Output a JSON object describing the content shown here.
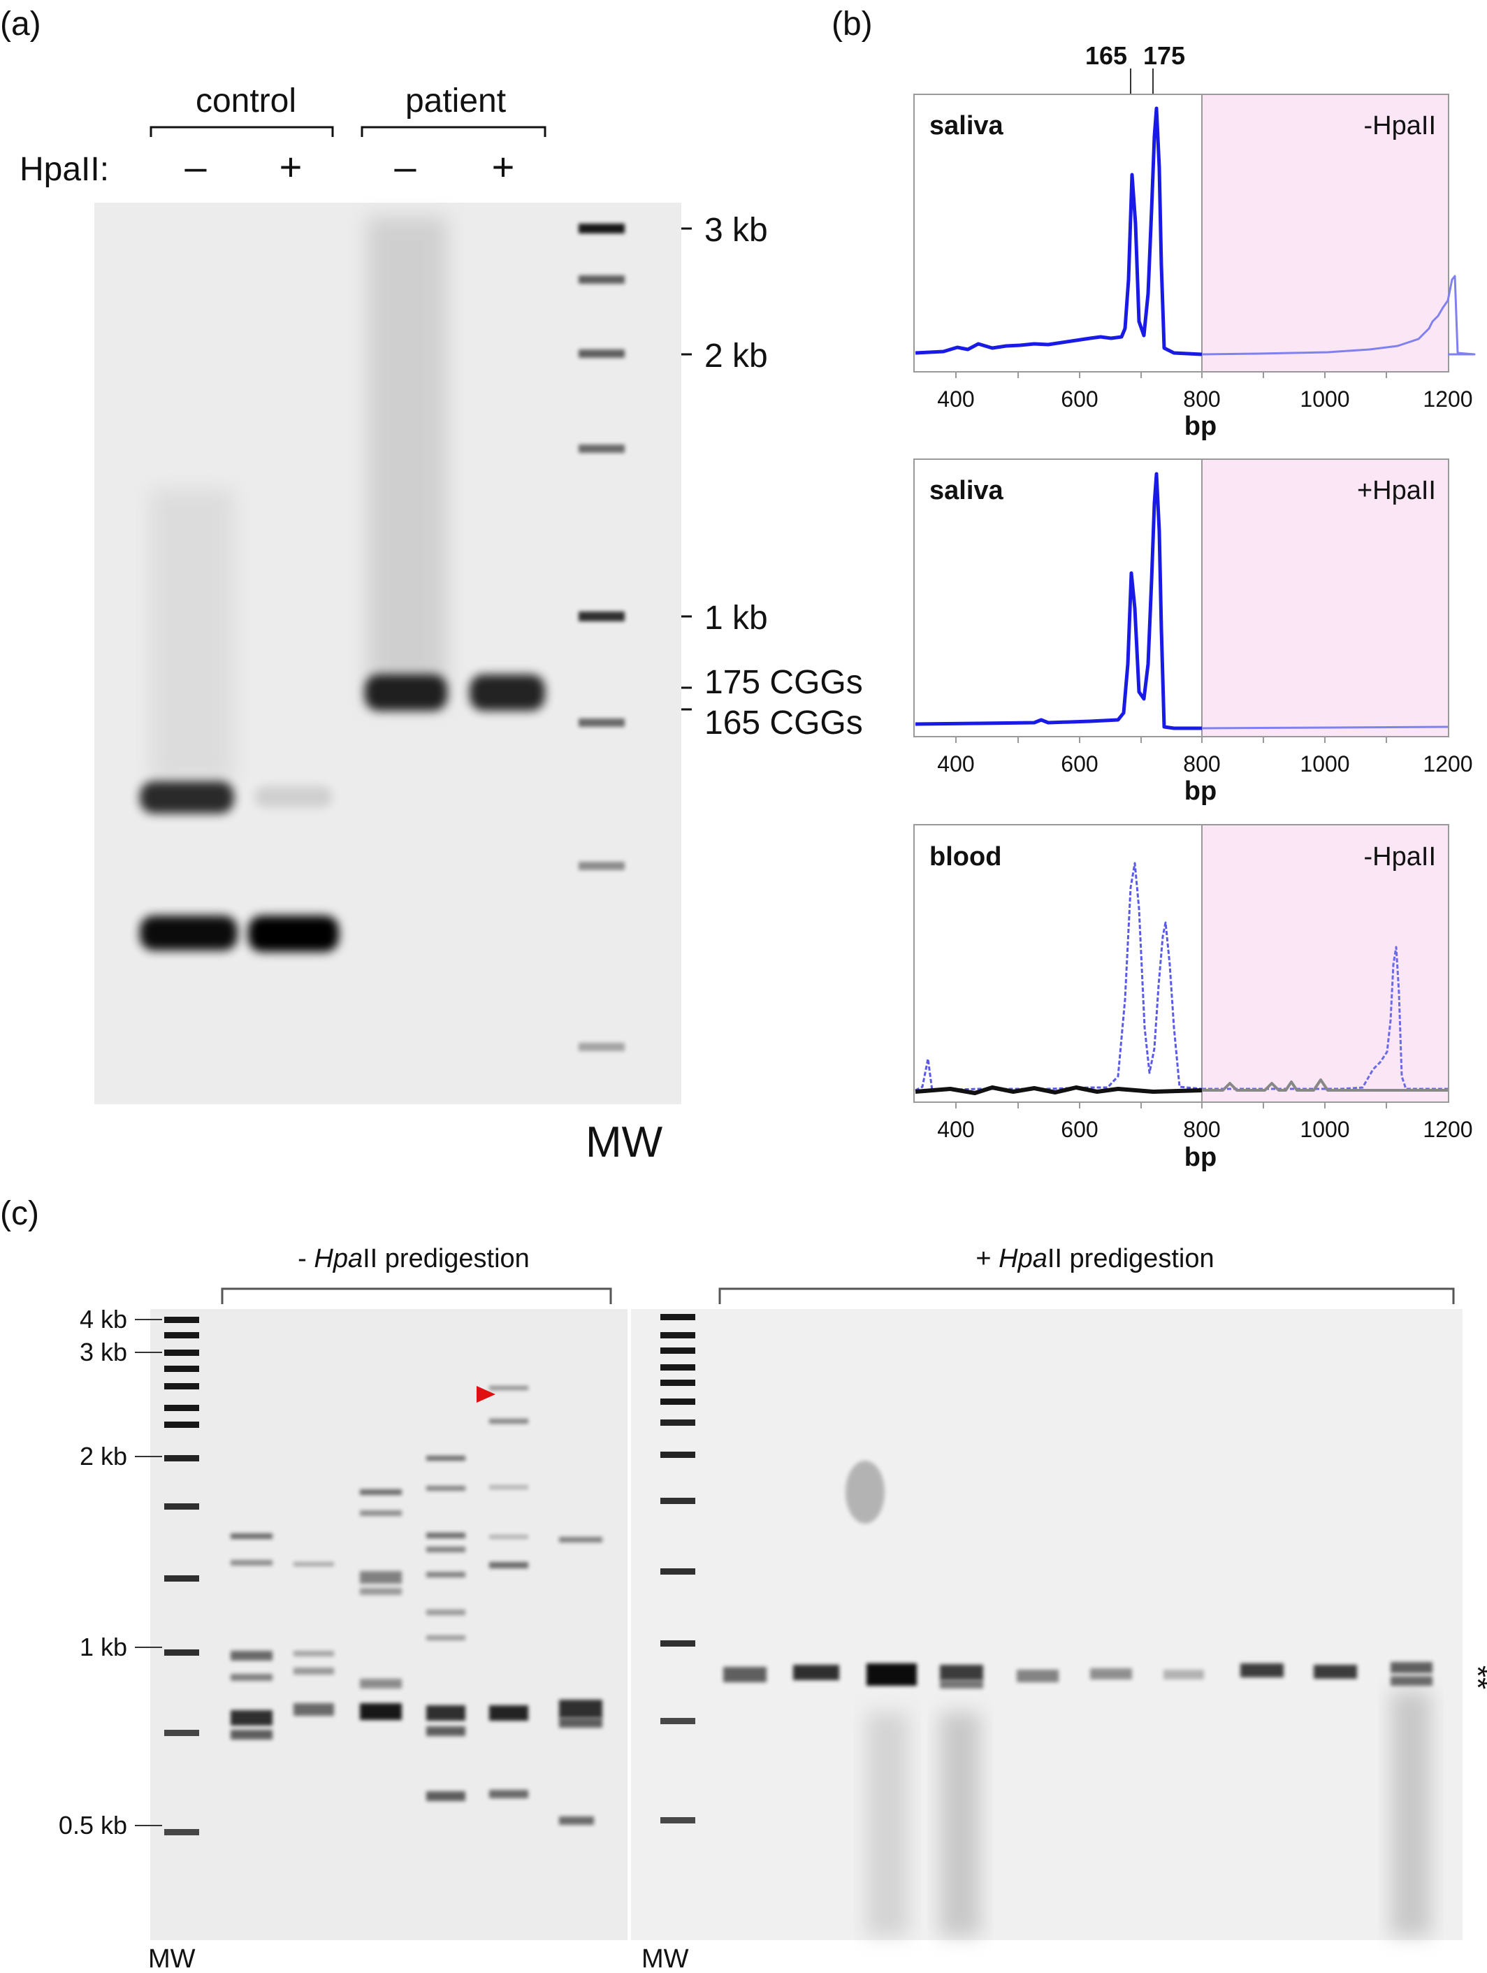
{
  "panel_a": {
    "panel_label": "(a)",
    "group_control": "control",
    "group_patient": "patient",
    "enzyme_label": "HpaII:",
    "lane_signs": [
      "–",
      "+",
      "–",
      "+"
    ],
    "size_markers": [
      "3 kb",
      "2 kb",
      "1 kb",
      "175 CGGs",
      "165 CGGs"
    ],
    "mw_label": "MW"
  },
  "panel_b": {
    "panel_label": "(b)",
    "peak_labels": [
      "165",
      "175"
    ],
    "x_axis_label": "bp",
    "x_ticks": [
      "400",
      "600",
      "800",
      "1000",
      "1200"
    ],
    "traces": [
      {
        "sample": "saliva",
        "condition": "-HpaII",
        "color": "#1a1ae6"
      },
      {
        "sample": "saliva",
        "condition": "+HpaII",
        "color": "#1a1ae6"
      },
      {
        "sample": "blood",
        "condition": "-HpaII",
        "color": "#5a5ae6"
      }
    ],
    "shade_color": "#fbe6f6"
  },
  "panel_c": {
    "panel_label": "(c)",
    "left_title_prefix": "- ",
    "left_title_italic": "Hpa",
    "left_title_suffix": "II predigestion",
    "right_title_prefix": "+ ",
    "right_title_italic": "Hpa",
    "right_title_suffix": "II predigestion",
    "size_markers": [
      "4 kb",
      "3 kb",
      "2 kb",
      "1 kb",
      "0.5 kb"
    ],
    "mw_left": "MW",
    "mw_right": "MW",
    "asterisks": "**",
    "arrow_color": "#e01010"
  }
}
